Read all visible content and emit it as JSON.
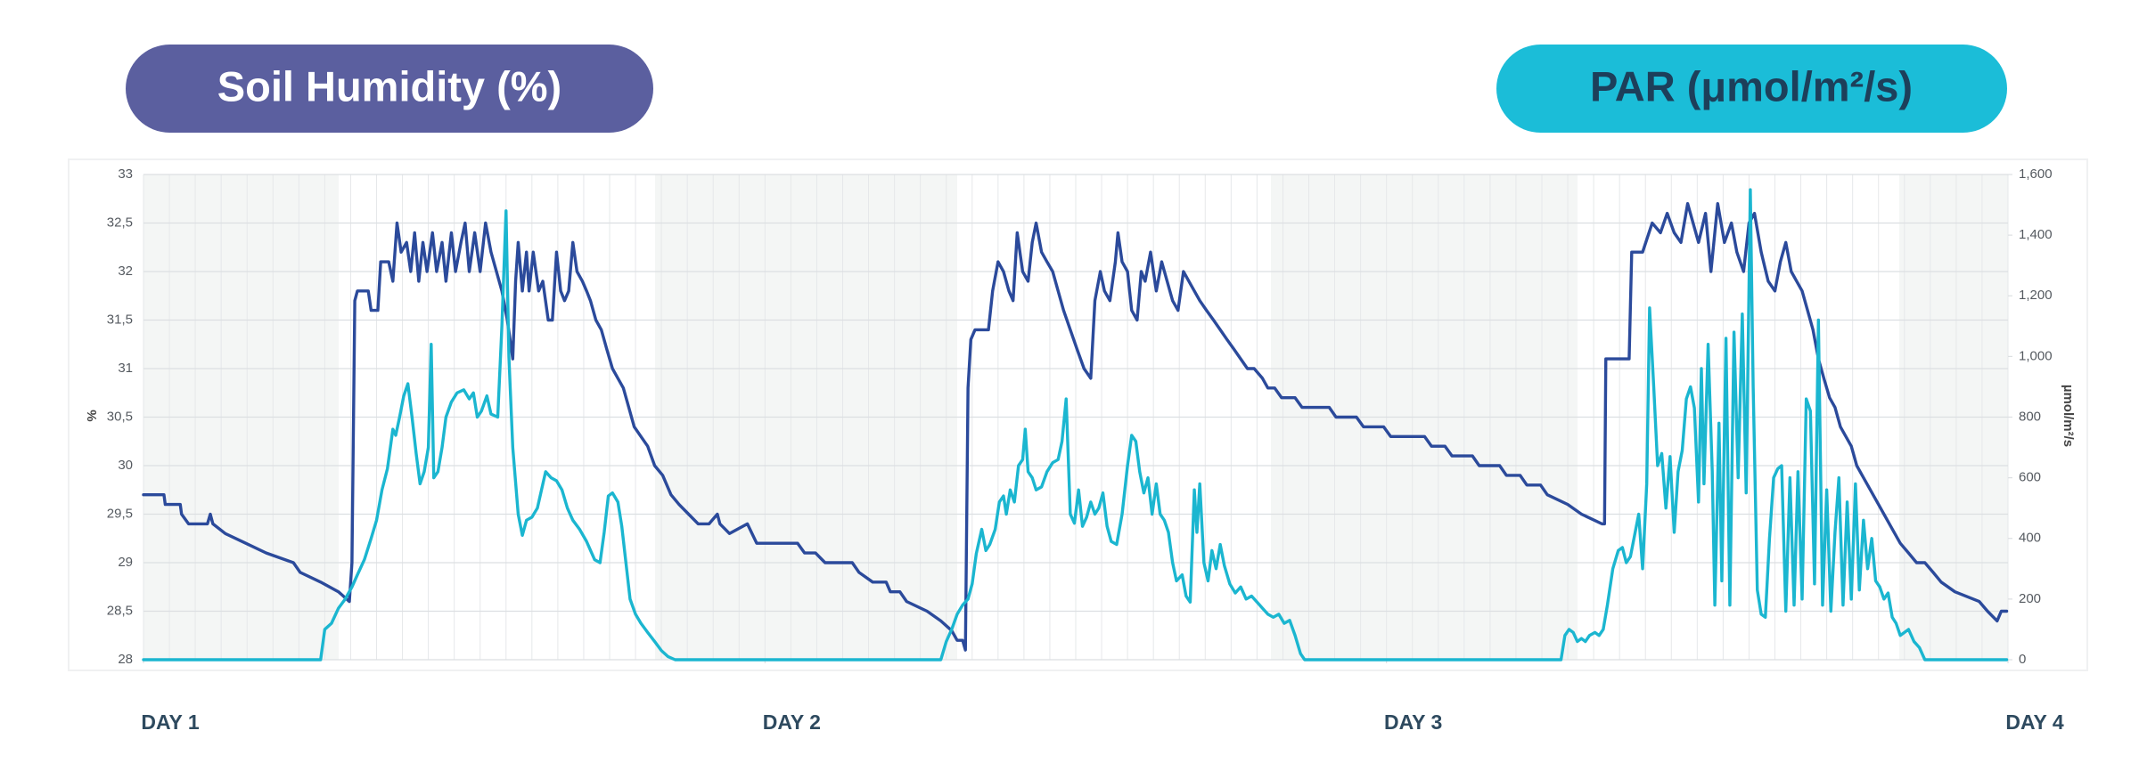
{
  "chart_data": {
    "type": "line",
    "xlim": [
      0,
      72
    ],
    "xticks": [
      {
        "value": 0,
        "label": "DAY 1"
      },
      {
        "value": 24,
        "label": "DAY 2"
      },
      {
        "value": 48,
        "label": "DAY 3"
      },
      {
        "value": 72,
        "label": "DAY 4"
      }
    ],
    "ylabel": "%",
    "ylim": [
      28,
      33
    ],
    "yticks": [
      28,
      {
        "value": 28.5,
        "label": "28,5"
      },
      29,
      {
        "value": 29.5,
        "label": "29,5"
      },
      30,
      {
        "value": 30.5,
        "label": "30,5"
      },
      31,
      {
        "value": 31.5,
        "label": "31,5"
      },
      32,
      {
        "value": 32.5,
        "label": "32,5"
      },
      33
    ],
    "y2label": "µmol/m²/s",
    "y2lim": [
      0,
      1600
    ],
    "y2ticks": [
      0,
      200,
      400,
      600,
      800,
      {
        "value": 1000,
        "label": "1,000"
      },
      {
        "value": 1200,
        "label": "1,200"
      },
      {
        "value": 1400,
        "label": "1,400"
      },
      {
        "value": 1600,
        "label": "1,600"
      }
    ],
    "grid": true,
    "series": [
      {
        "name": "Soil Humidity (%)",
        "color": "#2b4a9b",
        "x": [
          0,
          0.79,
          0.84,
          1.42,
          1.47,
          1.74,
          2.47,
          2.58,
          2.68,
          3.16,
          3.95,
          4.74,
          5.79,
          6.05,
          6.84,
          7.53,
          7.95,
          8.05,
          8.16,
          8.26,
          8.68,
          8.79,
          9.05,
          9.16,
          9.47,
          9.63,
          9.79,
          9.95,
          10.16,
          10.32,
          10.47,
          10.63,
          10.79,
          10.95,
          11.16,
          11.32,
          11.53,
          11.68,
          11.89,
          12.05,
          12.26,
          12.42,
          12.58,
          12.79,
          13.0,
          13.21,
          13.42,
          13.63,
          13.84,
          14.05,
          14.26,
          14.37,
          14.47,
          14.63,
          14.79,
          14.89,
          15.05,
          15.26,
          15.42,
          15.63,
          15.79,
          15.95,
          16.11,
          16.26,
          16.42,
          16.58,
          16.74,
          16.95,
          17.11,
          17.26,
          17.47,
          17.68,
          17.89,
          18.11,
          18.32,
          18.53,
          18.74,
          18.95,
          19.21,
          19.47,
          19.74,
          20.05,
          20.37,
          20.68,
          21.05,
          21.42,
          21.84,
          22.16,
          22.26,
          22.63,
          23.32,
          23.68,
          25.26,
          25.53,
          25.95,
          26.32,
          27.37,
          27.63,
          28.16,
          28.68,
          28.84,
          29.21,
          29.47,
          30.26,
          30.79,
          31.21,
          31.42,
          31.63,
          31.74,
          31.84,
          31.95,
          32.11,
          32.63,
          32.79,
          33.0,
          33.21,
          33.42,
          33.58,
          33.74,
          33.95,
          34.16,
          34.32,
          34.47,
          34.68,
          34.89,
          35.11,
          35.32,
          35.53,
          35.79,
          36.05,
          36.32,
          36.58,
          36.74,
          36.95,
          37.11,
          37.32,
          37.53,
          37.63,
          37.79,
          38.0,
          38.16,
          38.37,
          38.53,
          38.68,
          38.89,
          39.11,
          39.32,
          39.53,
          39.74,
          39.95,
          40.16,
          40.37,
          40.58,
          40.79,
          41.05,
          41.32,
          41.58,
          41.84,
          42.11,
          42.37,
          42.63,
          42.89,
          43.21,
          43.42,
          43.68,
          43.95,
          44.47,
          44.74,
          45.26,
          45.79,
          46.05,
          46.84,
          47.11,
          47.89,
          48.16,
          49.47,
          49.74,
          50.26,
          50.53,
          51.32,
          51.58,
          52.37,
          52.63,
          53.16,
          53.42,
          53.95,
          54.21,
          55.0,
          55.53,
          56.32,
          56.42,
          56.47,
          57.37,
          57.47,
          57.89,
          58.26,
          58.58,
          58.84,
          59.11,
          59.37,
          59.63,
          59.84,
          60.05,
          60.32,
          60.53,
          60.79,
          61.05,
          61.32,
          61.53,
          61.79,
          62.0,
          62.21,
          62.47,
          62.74,
          63.0,
          63.21,
          63.42,
          63.63,
          63.84,
          64.05,
          64.26,
          64.47,
          64.68,
          64.89,
          65.11,
          65.32,
          65.53,
          65.74,
          65.95,
          66.16,
          66.37,
          66.58,
          66.79,
          67.0,
          67.21,
          67.42,
          67.63,
          67.84,
          68.16,
          68.47,
          68.79,
          69.11,
          69.42,
          69.95,
          70.89,
          71.21,
          71.58,
          71.74,
          71.95
        ],
        "values": [
          29.7,
          29.7,
          29.6,
          29.6,
          29.5,
          29.4,
          29.4,
          29.5,
          29.4,
          29.3,
          29.2,
          29.1,
          29.0,
          28.9,
          28.8,
          28.7,
          28.6,
          29.0,
          31.7,
          31.8,
          31.8,
          31.6,
          31.6,
          32.1,
          32.1,
          31.9,
          32.5,
          32.2,
          32.3,
          32.0,
          32.4,
          31.9,
          32.3,
          32.0,
          32.4,
          32.0,
          32.3,
          31.9,
          32.4,
          32.0,
          32.3,
          32.5,
          32.0,
          32.4,
          32.0,
          32.5,
          32.2,
          32.0,
          31.8,
          31.5,
          31.1,
          31.9,
          32.3,
          31.8,
          32.2,
          31.8,
          32.2,
          31.8,
          31.9,
          31.5,
          31.5,
          32.2,
          31.8,
          31.7,
          31.8,
          32.3,
          32.0,
          31.9,
          31.8,
          31.7,
          31.5,
          31.4,
          31.2,
          31.0,
          30.9,
          30.8,
          30.6,
          30.4,
          30.3,
          30.2,
          30.0,
          29.9,
          29.7,
          29.6,
          29.5,
          29.4,
          29.4,
          29.5,
          29.4,
          29.3,
          29.4,
          29.2,
          29.2,
          29.1,
          29.1,
          29.0,
          29.0,
          28.9,
          28.8,
          28.8,
          28.7,
          28.7,
          28.6,
          28.5,
          28.4,
          28.3,
          28.2,
          28.2,
          28.1,
          30.8,
          31.3,
          31.4,
          31.4,
          31.8,
          32.1,
          32.0,
          31.8,
          31.7,
          32.4,
          32.0,
          31.9,
          32.3,
          32.5,
          32.2,
          32.1,
          32.0,
          31.8,
          31.6,
          31.4,
          31.2,
          31.0,
          30.9,
          31.7,
          32.0,
          31.8,
          31.7,
          32.1,
          32.4,
          32.1,
          32.0,
          31.6,
          31.5,
          32.0,
          31.9,
          32.2,
          31.8,
          32.1,
          31.9,
          31.7,
          31.6,
          32.0,
          31.9,
          31.8,
          31.7,
          31.6,
          31.5,
          31.4,
          31.3,
          31.2,
          31.1,
          31.0,
          31.0,
          30.9,
          30.8,
          30.8,
          30.7,
          30.7,
          30.6,
          30.6,
          30.6,
          30.5,
          30.5,
          30.4,
          30.4,
          30.3,
          30.3,
          30.2,
          30.2,
          30.1,
          30.1,
          30.0,
          30.0,
          29.9,
          29.9,
          29.8,
          29.8,
          29.7,
          29.6,
          29.5,
          29.4,
          29.4,
          31.1,
          31.1,
          32.2,
          32.2,
          32.5,
          32.4,
          32.6,
          32.4,
          32.3,
          32.7,
          32.5,
          32.3,
          32.6,
          32.0,
          32.7,
          32.3,
          32.5,
          32.2,
          32.0,
          32.5,
          32.6,
          32.2,
          31.9,
          31.8,
          32.1,
          32.3,
          32.0,
          31.9,
          31.8,
          31.6,
          31.4,
          31.1,
          30.9,
          30.7,
          30.6,
          30.4,
          30.3,
          30.2,
          30.0,
          29.9,
          29.8,
          29.7,
          29.6,
          29.5,
          29.4,
          29.3,
          29.2,
          29.1,
          29.0,
          29.0,
          28.9,
          28.8,
          28.7,
          28.6,
          28.5,
          28.4,
          28.5,
          28.5
        ]
      },
      {
        "name": "PAR (μmol/m²/s)",
        "color": "#1bb6d0",
        "axis": "y2",
        "x": [
          0,
          6.84,
          7.0,
          7.26,
          7.53,
          7.79,
          8.05,
          8.26,
          8.53,
          8.79,
          9.0,
          9.21,
          9.42,
          9.63,
          9.74,
          9.89,
          10.05,
          10.21,
          10.37,
          10.53,
          10.68,
          10.84,
          11.0,
          11.11,
          11.21,
          11.37,
          11.53,
          11.68,
          11.89,
          12.11,
          12.37,
          12.58,
          12.74,
          12.89,
          13.05,
          13.26,
          13.42,
          13.68,
          13.84,
          14.0,
          14.11,
          14.26,
          14.47,
          14.63,
          14.79,
          15.0,
          15.21,
          15.37,
          15.53,
          15.74,
          15.95,
          16.16,
          16.37,
          16.58,
          16.84,
          17.11,
          17.42,
          17.63,
          17.79,
          17.95,
          18.11,
          18.32,
          18.47,
          18.63,
          18.79,
          19.0,
          19.21,
          19.47,
          19.74,
          20.0,
          20.26,
          20.53,
          20.79,
          30.79,
          31.0,
          31.21,
          31.42,
          31.63,
          31.84,
          32.0,
          32.16,
          32.37,
          32.53,
          32.68,
          32.89,
          33.05,
          33.21,
          33.32,
          33.47,
          33.63,
          33.79,
          33.95,
          34.05,
          34.16,
          34.32,
          34.47,
          34.68,
          34.89,
          35.11,
          35.32,
          35.47,
          35.63,
          35.79,
          35.95,
          36.11,
          36.26,
          36.42,
          36.58,
          36.74,
          36.89,
          37.05,
          37.21,
          37.37,
          37.58,
          37.79,
          38.0,
          38.16,
          38.32,
          38.47,
          38.63,
          38.79,
          38.95,
          39.11,
          39.26,
          39.42,
          39.58,
          39.74,
          39.89,
          40.11,
          40.26,
          40.42,
          40.58,
          40.68,
          40.79,
          40.95,
          41.11,
          41.26,
          41.42,
          41.58,
          41.74,
          41.95,
          42.16,
          42.37,
          42.58,
          42.79,
          43.0,
          43.21,
          43.42,
          43.63,
          43.84,
          44.05,
          44.26,
          44.47,
          44.68,
          44.84,
          54.74,
          54.89,
          55.05,
          55.21,
          55.37,
          55.53,
          55.68,
          55.84,
          56.05,
          56.21,
          56.37,
          56.53,
          56.74,
          56.95,
          57.11,
          57.26,
          57.42,
          57.58,
          57.74,
          57.89,
          58.05,
          58.16,
          58.32,
          58.47,
          58.63,
          58.79,
          58.95,
          59.11,
          59.26,
          59.42,
          59.58,
          59.74,
          59.89,
          60.05,
          60.16,
          60.26,
          60.42,
          60.58,
          60.68,
          60.84,
          60.95,
          61.11,
          61.26,
          61.42,
          61.58,
          61.74,
          61.89,
          62.05,
          62.16,
          62.32,
          62.47,
          62.63,
          62.79,
          62.95,
          63.11,
          63.26,
          63.42,
          63.58,
          63.74,
          63.89,
          64.05,
          64.21,
          64.37,
          64.53,
          64.68,
          64.84,
          65.0,
          65.16,
          65.32,
          65.47,
          65.63,
          65.79,
          65.95,
          66.11,
          66.26,
          66.42,
          66.58,
          66.74,
          66.89,
          67.05,
          67.21,
          67.37,
          67.53,
          67.68,
          67.84,
          68.0,
          68.16,
          68.37,
          68.58,
          68.79,
          71.95
        ],
        "values": [
          0,
          0,
          100,
          120,
          170,
          200,
          240,
          280,
          330,
          400,
          460,
          560,
          630,
          760,
          740,
          800,
          870,
          910,
          800,
          680,
          580,
          620,
          700,
          1040,
          600,
          620,
          700,
          800,
          850,
          880,
          890,
          860,
          880,
          800,
          820,
          870,
          810,
          800,
          1100,
          1480,
          1000,
          700,
          480,
          410,
          460,
          470,
          500,
          560,
          620,
          600,
          590,
          560,
          500,
          460,
          430,
          390,
          330,
          320,
          420,
          540,
          550,
          520,
          440,
          320,
          200,
          150,
          120,
          90,
          60,
          30,
          10,
          0,
          0,
          0,
          60,
          100,
          150,
          180,
          200,
          250,
          350,
          430,
          360,
          380,
          430,
          520,
          540,
          480,
          560,
          520,
          640,
          660,
          760,
          620,
          600,
          560,
          570,
          620,
          650,
          660,
          720,
          860,
          480,
          450,
          560,
          440,
          470,
          520,
          480,
          500,
          550,
          440,
          390,
          380,
          480,
          640,
          740,
          720,
          620,
          550,
          600,
          480,
          580,
          480,
          460,
          420,
          320,
          260,
          280,
          210,
          190,
          560,
          420,
          580,
          320,
          260,
          360,
          300,
          380,
          310,
          250,
          220,
          240,
          200,
          210,
          190,
          170,
          150,
          140,
          150,
          120,
          130,
          80,
          20,
          0,
          0,
          80,
          100,
          90,
          60,
          70,
          60,
          80,
          90,
          80,
          100,
          180,
          300,
          360,
          370,
          320,
          340,
          410,
          480,
          300,
          580,
          1160,
          900,
          640,
          680,
          500,
          670,
          420,
          620,
          690,
          860,
          900,
          830,
          520,
          960,
          580,
          1040,
          620,
          180,
          780,
          260,
          1060,
          180,
          1080,
          600,
          1140,
          550,
          1550,
          900,
          230,
          150,
          140,
          400,
          600,
          630,
          640,
          160,
          600,
          180,
          620,
          200,
          860,
          820,
          250,
          1120,
          180,
          560,
          160,
          420,
          600,
          180,
          520,
          200,
          580,
          230,
          460,
          300,
          400,
          260,
          240,
          200,
          220,
          140,
          120,
          80,
          90,
          100,
          60,
          40,
          0,
          0
        ]
      }
    ]
  }
}
